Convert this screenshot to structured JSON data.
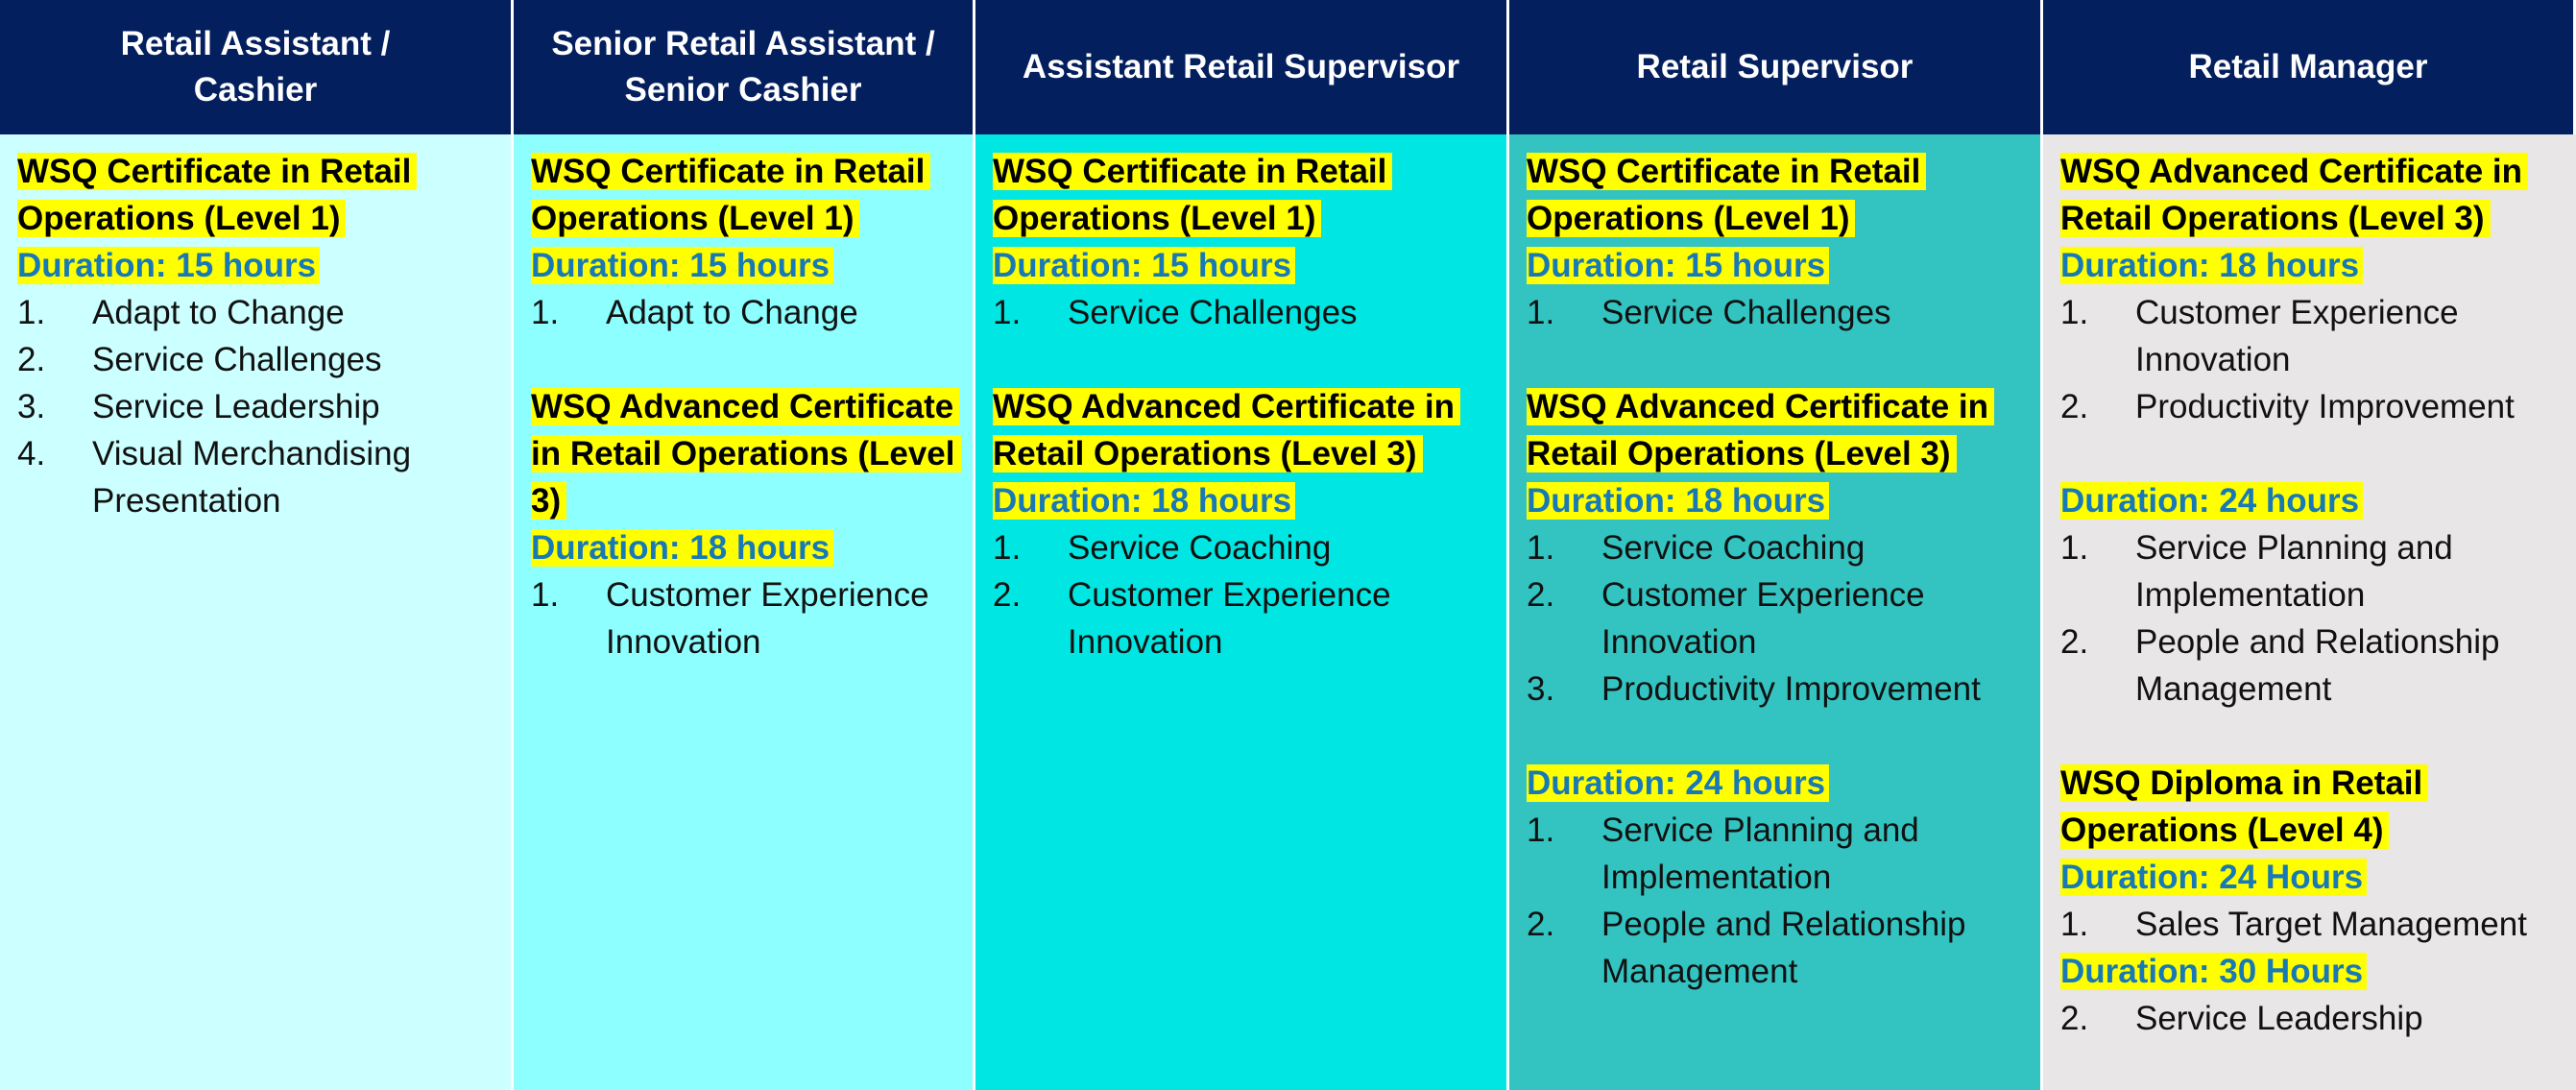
{
  "columns": [
    {
      "header": "Retail Assistant /\nCashier",
      "blocks": [
        {
          "title": "WSQ Certificate in Retail Operations (Level 1)",
          "duration": "Duration: 15 hours",
          "items": [
            {
              "num": "1.",
              "text": "Adapt to Change"
            },
            {
              "num": "2.",
              "text": "Service Challenges"
            },
            {
              "num": "3.",
              "text": "Service Leadership"
            },
            {
              "num": "4.",
              "text": "Visual Merchandising Presentation"
            }
          ]
        }
      ]
    },
    {
      "header": "Senior Retail Assistant /\nSenior Cashier",
      "blocks": [
        {
          "title": "WSQ Certificate in Retail Operations (Level 1)",
          "duration": "Duration: 15 hours",
          "items": [
            {
              "num": "1.",
              "text": "Adapt to Change"
            }
          ]
        },
        {
          "title": "WSQ Advanced Certificate in Retail Operations (Level 3)",
          "duration": "Duration: 18 hours",
          "items": [
            {
              "num": "1.",
              "text": "Customer Experience Innovation"
            }
          ]
        }
      ]
    },
    {
      "header": "Assistant Retail Supervisor",
      "blocks": [
        {
          "title": "WSQ Certificate in Retail Operations (Level 1)",
          "duration": "Duration: 15 hours",
          "items": [
            {
              "num": "1.",
              "text": "Service Challenges"
            }
          ]
        },
        {
          "title": "WSQ Advanced Certificate in Retail Operations (Level 3)",
          "duration": "Duration: 18 hours",
          "items": [
            {
              "num": "1.",
              "text": "Service Coaching"
            },
            {
              "num": "2.",
              "text": "Customer Experience Innovation"
            }
          ]
        }
      ]
    },
    {
      "header": "Retail Supervisor",
      "blocks": [
        {
          "title": "WSQ Certificate in Retail Operations (Level 1)",
          "duration": "Duration: 15 hours",
          "items": [
            {
              "num": "1.",
              "text": "Service Challenges"
            }
          ]
        },
        {
          "title": "WSQ Advanced Certificate in Retail Operations (Level 3)",
          "duration": "Duration: 18 hours",
          "items": [
            {
              "num": "1.",
              "text": "Service Coaching"
            },
            {
              "num": "2.",
              "text": "Customer Experience Innovation"
            },
            {
              "num": "3.",
              "text": "Productivity Improvement"
            }
          ]
        },
        {
          "title": "",
          "duration": "Duration: 24 hours",
          "items": [
            {
              "num": "1.",
              "text": "Service Planning and Implementation"
            },
            {
              "num": "2.",
              "text": "People and Relationship Management"
            }
          ]
        }
      ]
    },
    {
      "header": "Retail Manager",
      "blocks": [
        {
          "title": "WSQ Advanced Certificate in Retail Operations (Level 3)",
          "duration": "Duration: 18 hours",
          "items": [
            {
              "num": "1.",
              "text": "Customer Experience Innovation"
            },
            {
              "num": "2.",
              "text": "Productivity Improvement"
            }
          ]
        },
        {
          "title": "",
          "duration": "Duration: 24 hours",
          "items": [
            {
              "num": "1.",
              "text": "Service Planning and Implementation"
            },
            {
              "num": "2.",
              "text": "People and Relationship Management"
            }
          ]
        },
        {
          "title": "WSQ Diploma in Retail Operations (Level 4)",
          "duration": "Duration: 24 Hours",
          "items": [
            {
              "num": "1.",
              "text": "Sales Target Management"
            }
          ],
          "tight": true
        },
        {
          "title": "",
          "duration": "Duration: 30 Hours",
          "items": [
            {
              "num": "2.",
              "text": "Service Leadership"
            }
          ]
        }
      ]
    }
  ],
  "colors": {
    "header_bg": "#041f5e",
    "header_text": "#ffffff",
    "col_bg": [
      "#ccffff",
      "#8dffff",
      "#00e6e2",
      "#33c4c1",
      "#e8e6e6"
    ],
    "highlight": "#ffff00",
    "duration_text": "#1779b5"
  }
}
